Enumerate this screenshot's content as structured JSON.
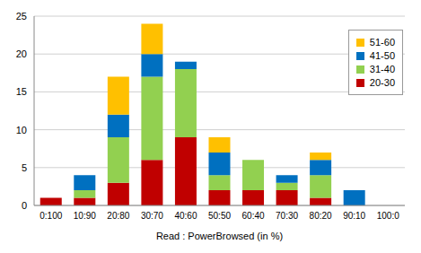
{
  "chart_data": {
    "type": "bar",
    "stacked": true,
    "x_label": "Read : PowerBrowsed (in %)",
    "categories": [
      "0:100",
      "10:90",
      "20:80",
      "30:70",
      "40:60",
      "50:50",
      "60:40",
      "70:30",
      "80:20",
      "90:10",
      "100:0"
    ],
    "series": [
      {
        "name": "20-30",
        "color": "#c00000",
        "values": [
          1,
          1,
          3,
          6,
          9,
          2,
          2,
          2,
          1,
          0,
          0
        ]
      },
      {
        "name": "31-40",
        "color": "#92d050",
        "values": [
          0,
          1,
          6,
          11,
          9,
          2,
          4,
          1,
          3,
          0,
          0
        ]
      },
      {
        "name": "41-50",
        "color": "#0070c0",
        "values": [
          0,
          2,
          3,
          3,
          1,
          3,
          0,
          1,
          2,
          2,
          0
        ]
      },
      {
        "name": "51-60",
        "color": "#ffc000",
        "values": [
          0,
          0,
          5,
          4,
          0,
          2,
          0,
          0,
          1,
          0,
          0
        ]
      }
    ],
    "ylim": [
      0,
      25
    ],
    "yticks": [
      0,
      5,
      10,
      15,
      20,
      25
    ],
    "grid": true,
    "legend": "top-right"
  }
}
